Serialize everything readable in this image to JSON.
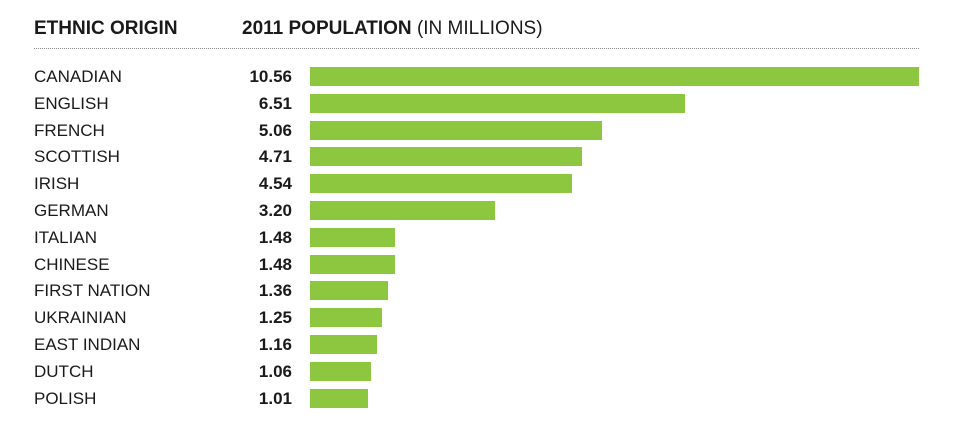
{
  "header": {
    "left_label": "ETHNIC ORIGIN",
    "right_label_bold": "2011 POPULATION",
    "right_label_light": "(IN MILLIONS)"
  },
  "chart_data": {
    "type": "bar",
    "orientation": "horizontal",
    "title": "",
    "xlabel": "2011 POPULATION (IN MILLIONS)",
    "ylabel": "ETHNIC ORIGIN",
    "categories": [
      "CANADIAN",
      "ENGLISH",
      "FRENCH",
      "SCOTTISH",
      "IRISH",
      "GERMAN",
      "ITALIAN",
      "CHINESE",
      "FIRST NATION",
      "UKRAINIAN",
      "EAST INDIAN",
      "DUTCH",
      "POLISH"
    ],
    "values": [
      10.56,
      6.51,
      5.06,
      4.71,
      4.54,
      3.2,
      1.48,
      1.48,
      1.36,
      1.25,
      1.16,
      1.06,
      1.01
    ],
    "value_labels": [
      "10.56",
      "6.51",
      "5.06",
      "4.71",
      "4.54",
      "3.20",
      "1.48",
      "1.48",
      "1.36",
      "1.25",
      "1.16",
      "1.06",
      "1.01"
    ],
    "xlim": [
      0,
      10.56
    ],
    "grid": false,
    "bar_color": "#8dc63f"
  }
}
